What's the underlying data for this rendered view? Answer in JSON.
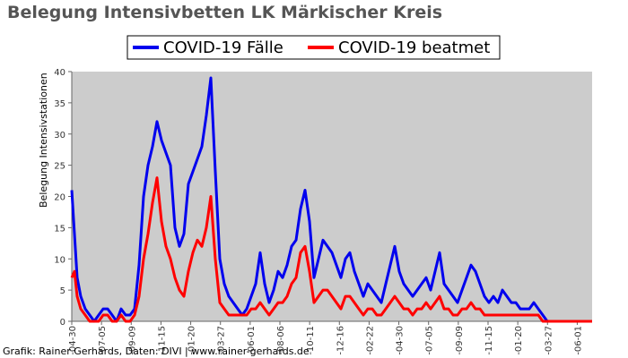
{
  "chart_data": {
    "type": "line",
    "title": "Belegung Intensivbetten LK Märkischer Kreis",
    "xlabel": "",
    "ylabel": "Belegung Intensivstationen",
    "ylim": [
      0,
      40
    ],
    "yticks": [
      0,
      5,
      10,
      15,
      20,
      25,
      30,
      35,
      40
    ],
    "grid": false,
    "legend_position": "top-center",
    "plot_background": "#cccccc",
    "x_tick_labels": [
      "-04-30",
      "-07-05",
      "-09-09",
      "-11-15",
      "-01-20",
      "-03-27",
      "-06-01",
      "-08-06",
      "-10-11",
      "-12-16",
      "-02-22",
      "-04-30",
      "-07-05",
      "-09-09",
      "-11-15",
      "-01-20",
      "-03-27",
      "-06-01"
    ],
    "credit": "Grafik: Rainer Gerhards, Daten: DIVI | www.rainer-gerhards.de",
    "series": [
      {
        "name": "COVID-19 Fälle",
        "color": "#0000ee",
        "x": [
          0,
          3,
          6,
          10,
          15,
          20,
          25,
          30,
          35,
          40,
          45,
          50,
          55,
          60,
          65,
          70,
          75,
          80,
          85,
          90,
          95,
          100,
          105,
          110,
          115,
          120,
          125,
          130,
          135,
          140,
          145,
          150,
          155,
          160,
          165,
          170,
          175,
          180,
          185,
          190,
          195,
          200,
          205,
          210,
          215,
          220,
          225,
          230,
          235,
          240,
          245,
          250,
          255,
          260,
          265,
          270,
          275,
          280,
          285,
          290,
          295,
          300,
          305,
          310,
          315,
          320,
          325,
          330,
          335,
          340,
          345,
          350,
          355,
          360,
          365,
          370,
          375,
          380,
          385,
          390,
          395,
          400,
          405,
          410,
          415,
          420,
          425,
          430,
          435,
          440,
          445,
          450,
          455,
          460,
          465,
          470,
          475,
          480,
          485,
          490,
          495,
          500,
          505,
          510,
          515,
          520,
          525,
          530,
          535,
          540,
          545,
          550,
          555,
          560,
          565,
          570,
          575,
          580
        ],
        "values": [
          21,
          14,
          7,
          4,
          2,
          1,
          0,
          1,
          2,
          2,
          1,
          0,
          2,
          1,
          1,
          2,
          9,
          20,
          25,
          28,
          32,
          29,
          27,
          25,
          15,
          12,
          14,
          22,
          24,
          26,
          28,
          33,
          39,
          24,
          10,
          6,
          4,
          3,
          2,
          1,
          2,
          4,
          6,
          11,
          6,
          3,
          5,
          8,
          7,
          9,
          12,
          13,
          18,
          21,
          16,
          7,
          10,
          13,
          12,
          11,
          9,
          7,
          10,
          11,
          8,
          6,
          4,
          6,
          5,
          4,
          3,
          6,
          9,
          12,
          8,
          6,
          5,
          4,
          5,
          6,
          7,
          5,
          8,
          11,
          6,
          5,
          4,
          3,
          5,
          7,
          9,
          8,
          6,
          4,
          3,
          4,
          3,
          5,
          4,
          3,
          3,
          2,
          2,
          2,
          3,
          2,
          1,
          0,
          0,
          0,
          0,
          0,
          0,
          0,
          0,
          0,
          0,
          0
        ]
      },
      {
        "name": "COVID-19 beatmet",
        "color": "#ff0000",
        "x": [
          0,
          3,
          6,
          10,
          15,
          20,
          25,
          30,
          35,
          40,
          45,
          50,
          55,
          60,
          65,
          70,
          75,
          80,
          85,
          90,
          95,
          100,
          105,
          110,
          115,
          120,
          125,
          130,
          135,
          140,
          145,
          150,
          155,
          160,
          165,
          170,
          175,
          180,
          185,
          190,
          195,
          200,
          205,
          210,
          215,
          220,
          225,
          230,
          235,
          240,
          245,
          250,
          255,
          260,
          265,
          270,
          275,
          280,
          285,
          290,
          295,
          300,
          305,
          310,
          315,
          320,
          325,
          330,
          335,
          340,
          345,
          350,
          355,
          360,
          365,
          370,
          375,
          380,
          385,
          390,
          395,
          400,
          405,
          410,
          415,
          420,
          425,
          430,
          435,
          440,
          445,
          450,
          455,
          460,
          465,
          470,
          475,
          480,
          485,
          490,
          495,
          500,
          505,
          510,
          515,
          520,
          525,
          530,
          535,
          540,
          545,
          550,
          555,
          560,
          565,
          570,
          575,
          580
        ],
        "values": [
          7,
          8,
          4,
          2,
          1,
          0,
          0,
          0,
          1,
          1,
          0,
          0,
          1,
          0,
          0,
          1,
          4,
          10,
          14,
          19,
          23,
          16,
          12,
          10,
          7,
          5,
          4,
          8,
          11,
          13,
          12,
          15,
          20,
          10,
          3,
          2,
          1,
          1,
          1,
          1,
          1,
          2,
          2,
          3,
          2,
          1,
          2,
          3,
          3,
          4,
          6,
          7,
          11,
          12,
          8,
          3,
          4,
          5,
          5,
          4,
          3,
          2,
          4,
          4,
          3,
          2,
          1,
          2,
          2,
          1,
          1,
          2,
          3,
          4,
          3,
          2,
          2,
          1,
          2,
          2,
          3,
          2,
          3,
          4,
          2,
          2,
          1,
          1,
          2,
          2,
          3,
          2,
          2,
          1,
          1,
          1,
          1,
          1,
          1,
          1,
          1,
          1,
          1,
          1,
          1,
          1,
          0,
          0,
          0,
          0,
          0,
          0,
          0,
          0,
          0,
          0,
          0,
          0
        ]
      }
    ]
  }
}
